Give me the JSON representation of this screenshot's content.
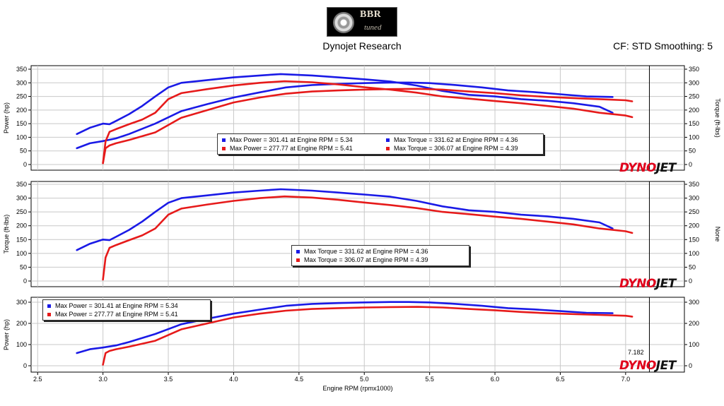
{
  "header": {
    "logo_text": "BBR",
    "logo_subtext": "tuned",
    "source": "Dynojet Research",
    "settings": "CF: STD Smoothing: 5"
  },
  "brand_mark": "DYNOJET",
  "colors": {
    "run1": "#1a1ae6",
    "run2": "#e61a1a"
  },
  "chart_data": [
    {
      "type": "line",
      "panel": "power-torque",
      "ylabel": "Power (hp)",
      "y2label": "Torque (ft-lbs)",
      "ylim": [
        0,
        350
      ],
      "yticks": [
        0,
        50,
        100,
        150,
        200,
        250,
        300,
        350
      ],
      "legend": {
        "placement": "center",
        "entries": [
          "Max Power = 301.41 at Engine RPM = 5.34",
          "Max Torque = 331.62 at Engine RPM = 4.36",
          "Max Power = 277.77 at Engine RPM = 5.41",
          "Max Torque = 306.07 at Engine RPM = 4.39"
        ]
      },
      "series": [
        {
          "color": "#1a1ae6",
          "metric": "torque",
          "x": [
            2.8,
            2.9,
            3.0,
            3.05,
            3.1,
            3.2,
            3.3,
            3.4,
            3.5,
            3.6,
            3.8,
            4.0,
            4.2,
            4.36,
            4.6,
            4.8,
            5.0,
            5.2,
            5.4,
            5.6,
            5.8,
            6.0,
            6.2,
            6.4,
            6.6,
            6.8,
            6.9
          ],
          "y": [
            112,
            135,
            150,
            148,
            160,
            185,
            215,
            250,
            283,
            300,
            310,
            320,
            327,
            332,
            327,
            320,
            313,
            305,
            290,
            270,
            256,
            250,
            240,
            234,
            225,
            212,
            190
          ]
        },
        {
          "color": "#1a1ae6",
          "metric": "power",
          "x": [
            2.8,
            2.9,
            3.0,
            3.1,
            3.2,
            3.4,
            3.6,
            3.8,
            4.0,
            4.2,
            4.4,
            4.6,
            4.8,
            5.0,
            5.2,
            5.34,
            5.5,
            5.7,
            5.9,
            6.1,
            6.3,
            6.5,
            6.7,
            6.9
          ],
          "y": [
            60,
            78,
            86,
            96,
            112,
            150,
            196,
            222,
            246,
            265,
            283,
            292,
            296,
            299,
            301,
            301,
            299,
            292,
            283,
            272,
            266,
            258,
            250,
            248
          ]
        },
        {
          "color": "#e61a1a",
          "metric": "torque",
          "x": [
            3.0,
            3.02,
            3.05,
            3.1,
            3.2,
            3.3,
            3.4,
            3.5,
            3.6,
            3.8,
            4.0,
            4.2,
            4.39,
            4.6,
            4.8,
            5.0,
            5.2,
            5.4,
            5.6,
            5.8,
            6.0,
            6.2,
            6.4,
            6.6,
            6.8,
            7.0,
            7.05
          ],
          "y": [
            5,
            85,
            120,
            130,
            148,
            165,
            190,
            240,
            262,
            277,
            290,
            300,
            306,
            302,
            294,
            284,
            275,
            264,
            250,
            242,
            233,
            225,
            215,
            205,
            190,
            180,
            174
          ]
        },
        {
          "color": "#e61a1a",
          "metric": "power",
          "x": [
            3.0,
            3.02,
            3.05,
            3.1,
            3.2,
            3.4,
            3.6,
            3.8,
            4.0,
            4.2,
            4.4,
            4.6,
            4.8,
            5.0,
            5.2,
            5.41,
            5.6,
            5.8,
            6.0,
            6.2,
            6.4,
            6.6,
            6.8,
            7.0,
            7.05
          ],
          "y": [
            5,
            60,
            70,
            78,
            90,
            118,
            172,
            200,
            228,
            246,
            260,
            268,
            272,
            275,
            277,
            278,
            275,
            268,
            262,
            254,
            248,
            244,
            240,
            236,
            232
          ]
        }
      ]
    },
    {
      "type": "line",
      "panel": "torque",
      "ylabel": "Torque (ft-lbs)",
      "y2label": "None",
      "ylim": [
        0,
        350
      ],
      "yticks": [
        0,
        50,
        100,
        150,
        200,
        250,
        300,
        350
      ],
      "legend": {
        "placement": "center",
        "entries": [
          "Max Torque = 331.62 at Engine RPM = 4.36",
          "Max Torque = 306.07 at Engine RPM = 4.39"
        ]
      },
      "series": [
        {
          "color": "#1a1ae6",
          "metric": "torque",
          "x": [
            2.8,
            2.9,
            3.0,
            3.05,
            3.1,
            3.2,
            3.3,
            3.4,
            3.5,
            3.6,
            3.8,
            4.0,
            4.2,
            4.36,
            4.6,
            4.8,
            5.0,
            5.2,
            5.4,
            5.6,
            5.8,
            6.0,
            6.2,
            6.4,
            6.6,
            6.8,
            6.9
          ],
          "y": [
            112,
            135,
            150,
            148,
            160,
            185,
            215,
            250,
            283,
            300,
            310,
            320,
            327,
            332,
            327,
            320,
            313,
            305,
            290,
            270,
            256,
            250,
            240,
            234,
            225,
            212,
            190
          ]
        },
        {
          "color": "#e61a1a",
          "metric": "torque",
          "x": [
            3.0,
            3.02,
            3.05,
            3.1,
            3.2,
            3.3,
            3.4,
            3.5,
            3.6,
            3.8,
            4.0,
            4.2,
            4.39,
            4.6,
            4.8,
            5.0,
            5.2,
            5.4,
            5.6,
            5.8,
            6.0,
            6.2,
            6.4,
            6.6,
            6.8,
            7.0,
            7.05
          ],
          "y": [
            5,
            85,
            120,
            130,
            148,
            165,
            190,
            240,
            262,
            277,
            290,
            300,
            306,
            302,
            294,
            284,
            275,
            264,
            250,
            242,
            233,
            225,
            215,
            205,
            190,
            180,
            174
          ]
        }
      ]
    },
    {
      "type": "line",
      "panel": "power",
      "ylabel": "Power (hp)",
      "xlabel": "Engine RPM (rpmx1000)",
      "xlim": [
        2.45,
        7.45
      ],
      "xticks": [
        "2.5",
        "3.0",
        "3.5",
        "4.0",
        "4.5",
        "5.0",
        "5.5",
        "6.0",
        "6.5",
        "7.0"
      ],
      "ylim": [
        -10,
        310
      ],
      "yticks": [
        0,
        100,
        200,
        300
      ],
      "cursor": {
        "x": 7.182,
        "label": "7.182"
      },
      "legend": {
        "placement": "top-left",
        "entries": [
          "Max Power = 301.41 at Engine RPM = 5.34",
          "Max Power = 277.77 at Engine RPM = 5.41"
        ]
      },
      "series": [
        {
          "color": "#1a1ae6",
          "metric": "power",
          "x": [
            2.8,
            2.9,
            3.0,
            3.1,
            3.2,
            3.4,
            3.6,
            3.8,
            4.0,
            4.2,
            4.4,
            4.6,
            4.8,
            5.0,
            5.2,
            5.34,
            5.5,
            5.7,
            5.9,
            6.1,
            6.3,
            6.5,
            6.7,
            6.9
          ],
          "y": [
            60,
            78,
            86,
            96,
            112,
            150,
            196,
            222,
            246,
            265,
            283,
            292,
            296,
            299,
            301,
            301,
            299,
            292,
            283,
            272,
            266,
            258,
            250,
            248
          ]
        },
        {
          "color": "#e61a1a",
          "metric": "power",
          "x": [
            3.0,
            3.02,
            3.05,
            3.1,
            3.2,
            3.4,
            3.6,
            3.8,
            4.0,
            4.2,
            4.4,
            4.6,
            4.8,
            5.0,
            5.2,
            5.41,
            5.6,
            5.8,
            6.0,
            6.2,
            6.4,
            6.6,
            6.8,
            7.0,
            7.05
          ],
          "y": [
            5,
            60,
            70,
            78,
            90,
            118,
            172,
            200,
            228,
            246,
            260,
            268,
            272,
            275,
            277,
            278,
            275,
            268,
            262,
            254,
            248,
            244,
            240,
            236,
            232
          ]
        }
      ]
    }
  ]
}
